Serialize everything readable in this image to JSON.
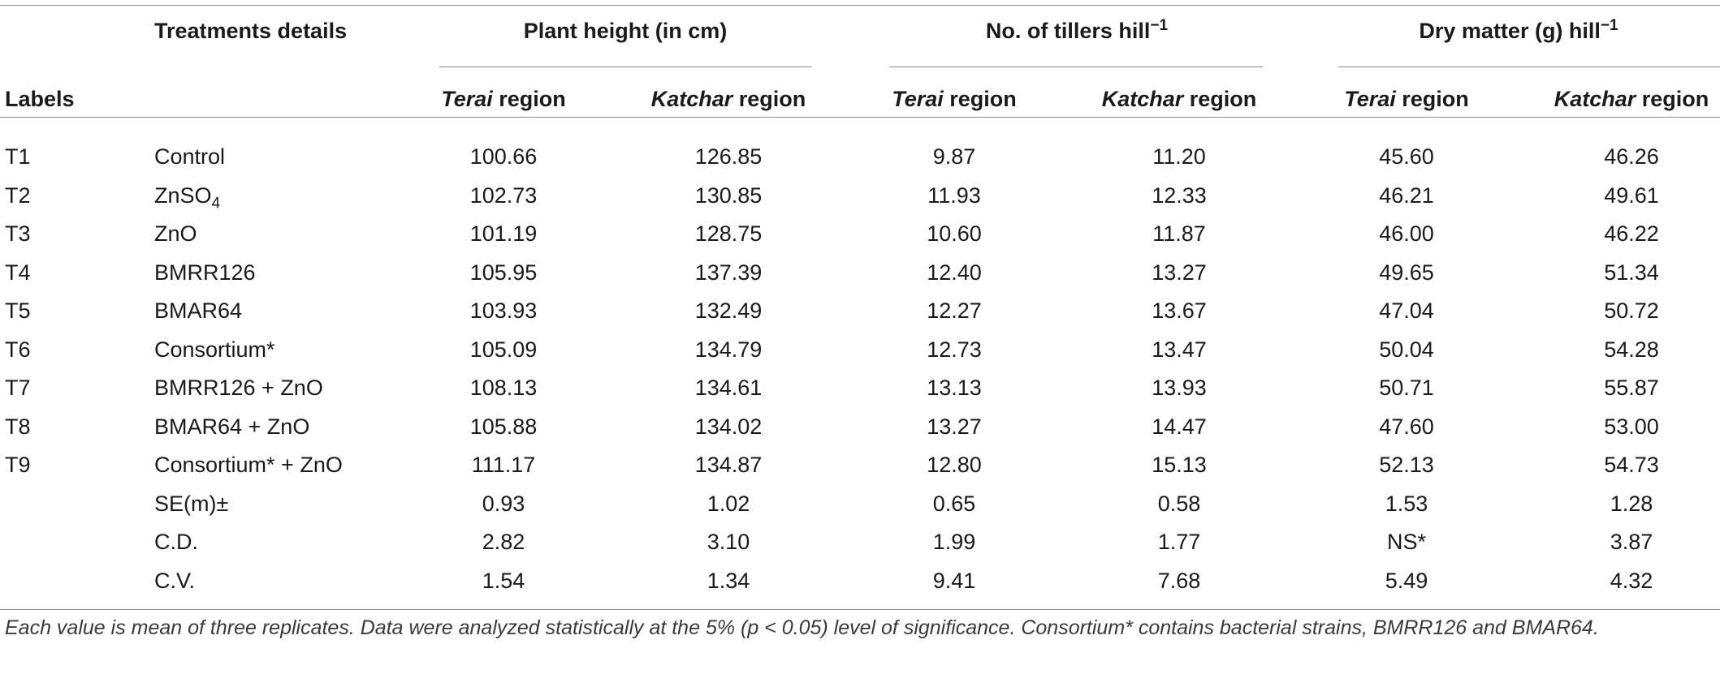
{
  "headers": {
    "labels": "Labels",
    "treatments": "Treatments details",
    "groups": [
      {
        "title": "Plant height (in cm)",
        "sup": ""
      },
      {
        "title": "No. of tillers hill",
        "sup": "−1"
      },
      {
        "title": "Dry matter (g) hill",
        "sup": "−1"
      }
    ],
    "sub_terai_italic": "Terai",
    "sub_terai_rest": " region",
    "sub_katchar_italic": "Katchar",
    "sub_katchar_rest": " region"
  },
  "rows": [
    {
      "label": "T1",
      "treatment": "Control",
      "values": [
        "100.66",
        "126.85",
        "9.87",
        "11.20",
        "45.60",
        "46.26"
      ]
    },
    {
      "label": "T2",
      "treatment": "ZnSO",
      "treatment_sub": "4",
      "values": [
        "102.73",
        "130.85",
        "11.93",
        "12.33",
        "46.21",
        "49.61"
      ]
    },
    {
      "label": "T3",
      "treatment": "ZnO",
      "values": [
        "101.19",
        "128.75",
        "10.60",
        "11.87",
        "46.00",
        "46.22"
      ]
    },
    {
      "label": "T4",
      "treatment": "BMRR126",
      "values": [
        "105.95",
        "137.39",
        "12.40",
        "13.27",
        "49.65",
        "51.34"
      ]
    },
    {
      "label": "T5",
      "treatment": "BMAR64",
      "values": [
        "103.93",
        "132.49",
        "12.27",
        "13.67",
        "47.04",
        "50.72"
      ]
    },
    {
      "label": "T6",
      "treatment": "Consortium*",
      "values": [
        "105.09",
        "134.79",
        "12.73",
        "13.47",
        "50.04",
        "54.28"
      ]
    },
    {
      "label": "T7",
      "treatment": "BMRR126 + ZnO",
      "values": [
        "108.13",
        "134.61",
        "13.13",
        "13.93",
        "50.71",
        "55.87"
      ]
    },
    {
      "label": "T8",
      "treatment": "BMAR64 + ZnO",
      "values": [
        "105.88",
        "134.02",
        "13.27",
        "14.47",
        "47.60",
        "53.00"
      ]
    },
    {
      "label": "T9",
      "treatment": "Consortium* + ZnO",
      "values": [
        "111.17",
        "134.87",
        "12.80",
        "15.13",
        "52.13",
        "54.73"
      ]
    },
    {
      "label": "",
      "treatment": "SE(m)±",
      "values": [
        "0.93",
        "1.02",
        "0.65",
        "0.58",
        "1.53",
        "1.28"
      ]
    },
    {
      "label": "",
      "treatment": "C.D.",
      "values": [
        "2.82",
        "3.10",
        "1.99",
        "1.77",
        "NS*",
        "3.87"
      ]
    },
    {
      "label": "",
      "treatment": "C.V.",
      "values": [
        "1.54",
        "1.34",
        "9.41",
        "7.68",
        "5.49",
        "4.32"
      ]
    }
  ],
  "footnote": "Each value is mean of three replicates. Data were analyzed statistically at the 5% (p < 0.05) level of significance. Consortium* contains bacterial strains, BMRR126 and BMAR64."
}
